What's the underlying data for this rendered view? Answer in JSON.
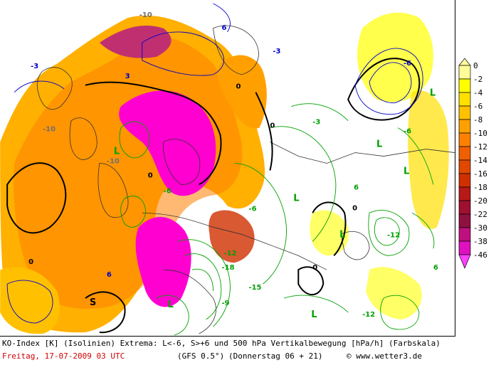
{
  "map": {
    "labels": [
      {
        "t": "-3",
        "c": "blue"
      },
      {
        "t": "6",
        "c": "blue"
      },
      {
        "t": "-3",
        "c": "blue"
      },
      {
        "t": "-6",
        "c": "blue"
      },
      {
        "t": "3",
        "c": "blue"
      },
      {
        "t": "6",
        "c": "blue"
      },
      {
        "t": "0",
        "c": "black"
      },
      {
        "t": "0",
        "c": "black"
      },
      {
        "t": "0",
        "c": "black"
      },
      {
        "t": "0",
        "c": "black"
      },
      {
        "t": "0",
        "c": "black"
      },
      {
        "t": "0",
        "c": "black"
      },
      {
        "t": "L",
        "c": "green"
      },
      {
        "t": "L",
        "c": "green"
      },
      {
        "t": "L",
        "c": "green"
      },
      {
        "t": "L",
        "c": "green"
      },
      {
        "t": "L",
        "c": "green"
      },
      {
        "t": "L",
        "c": "green"
      },
      {
        "t": "L",
        "c": "green"
      },
      {
        "t": "L",
        "c": "green"
      },
      {
        "t": "S",
        "c": "black"
      },
      {
        "t": "-6",
        "c": "green"
      },
      {
        "t": "-6",
        "c": "green"
      },
      {
        "t": "-6",
        "c": "green"
      },
      {
        "t": "-12",
        "c": "green"
      },
      {
        "t": "-12",
        "c": "green"
      },
      {
        "t": "-12",
        "c": "green"
      },
      {
        "t": "-18",
        "c": "green"
      },
      {
        "t": "-15",
        "c": "green"
      },
      {
        "t": "-9",
        "c": "green"
      },
      {
        "t": "6",
        "c": "green"
      },
      {
        "t": "6",
        "c": "green"
      },
      {
        "t": "-3",
        "c": "green"
      },
      {
        "t": "-10",
        "c": "gray"
      },
      {
        "t": "-10",
        "c": "gray"
      },
      {
        "t": "-10",
        "c": "gray"
      }
    ]
  },
  "legend": {
    "values": [
      "0",
      "-2",
      "-4",
      "-6",
      "-8",
      "-10",
      "-12",
      "-14",
      "-16",
      "-18",
      "-20",
      "-22",
      "-30",
      "-38",
      "-46"
    ],
    "colors": [
      "#ffff99",
      "#ffff00",
      "#ffe000",
      "#ffc000",
      "#ffa000",
      "#ff8000",
      "#f06000",
      "#e04800",
      "#d03000",
      "#b81818",
      "#a01030",
      "#901040",
      "#c01080",
      "#e010c0",
      "#ff40ff"
    ]
  },
  "footer": {
    "description": "KO-Index [K] (Isolinien) Extrema: L<-6, S>+6 und 500 hPa Vertikalbewegung [hPa/h] (Farbskala)",
    "date": "Freitag, 17-07-2009  03 UTC",
    "model": "(GFS 0.5°)",
    "run": "(Donnerstag 06 + 21)",
    "copyright": "© www.wetter3.de"
  },
  "colors": {
    "green": "#00a000",
    "blue": "#0000c8",
    "black": "#000000"
  }
}
